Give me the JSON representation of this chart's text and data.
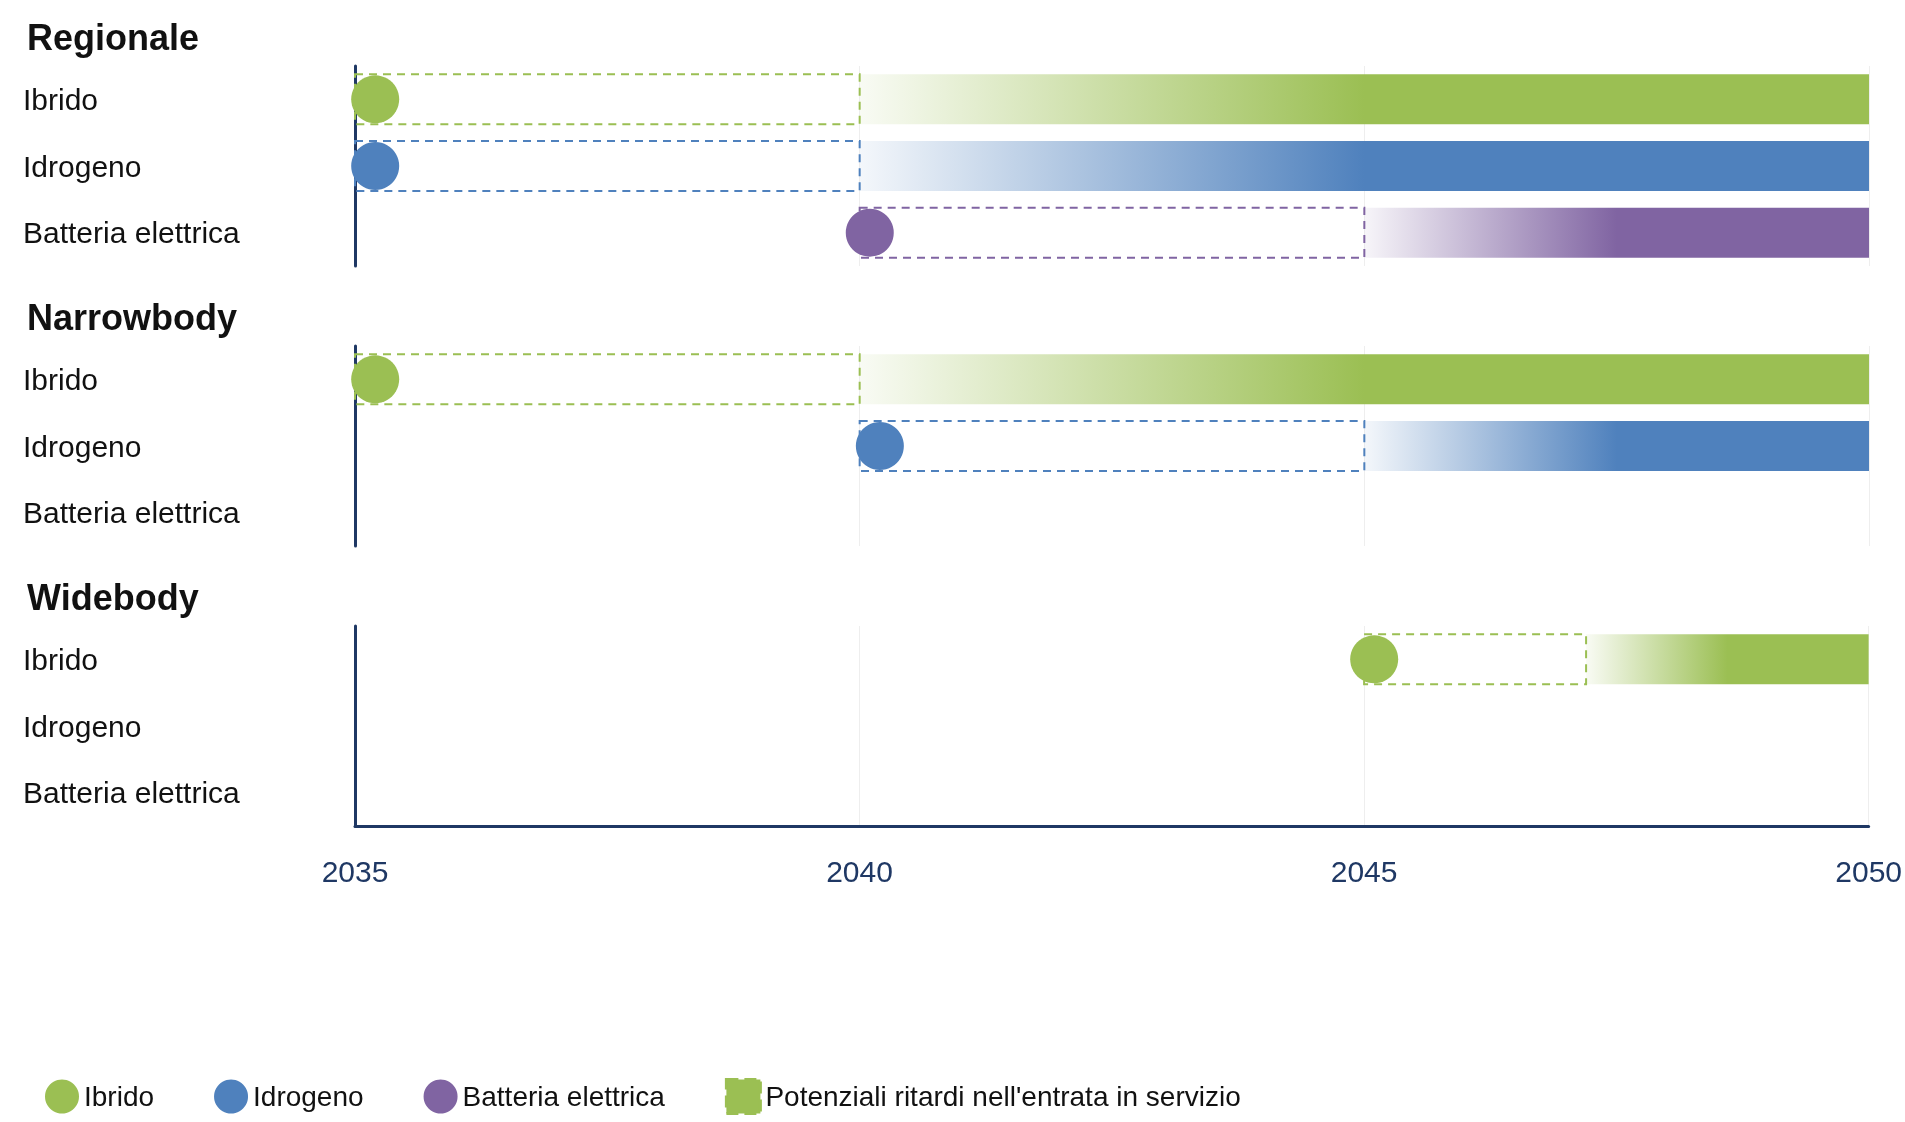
{
  "chart_data": [
    {
      "type": "bar",
      "orientation": "horizontal",
      "title": "Regionale",
      "categories": [
        "Ibrido",
        "Idrogeno",
        "Batteria elettrica"
      ],
      "xlim": [
        2035,
        2050
      ],
      "xticks": [
        2035,
        2040,
        2045,
        2050
      ],
      "grid": "x",
      "tick_labels": "y",
      "legend": false,
      "series": [
        {
          "line_style": "dashed",
          "base": [
            2035,
            2035,
            2040
          ],
          "values": [
            5,
            5,
            5
          ],
          "colors": [
            "#9bbf53",
            "#4f81bd",
            "#8064a2"
          ]
        },
        {
          "base": [
            2040,
            2040,
            2045
          ],
          "values": [
            10,
            10,
            5
          ],
          "colors": [
            "#9bbf53",
            "#4f81bd",
            "#8064a2"
          ]
        },
        {
          "type": "scatter",
          "color": "#9bbf53",
          "values": [
            2035.2,
            null,
            null
          ]
        },
        {
          "type": "scatter",
          "color": "#4f81bd",
          "values": [
            null,
            2035.2,
            null
          ]
        },
        {
          "type": "scatter",
          "color": "#8064a2",
          "values": [
            null,
            null,
            2040.1
          ]
        }
      ]
    },
    {
      "type": "bar",
      "orientation": "horizontal",
      "title": "Narrowbody",
      "categories": [
        "Ibrido",
        "Idrogeno",
        "Batteria elettrica"
      ],
      "xlim": [
        2035,
        2050
      ],
      "xticks": [
        2035,
        2040,
        2045,
        2050
      ],
      "grid": "x",
      "tick_labels": "y",
      "legend": false,
      "series": [
        {
          "line_style": "dashed",
          "base": [
            2035,
            2040,
            null
          ],
          "values": [
            5,
            5,
            null
          ],
          "colors": [
            "#9bbf53",
            "#4f81bd",
            "#8064a2"
          ]
        },
        {
          "base": [
            2040,
            2045,
            null
          ],
          "values": [
            10,
            5,
            null
          ],
          "colors": [
            "#9bbf53",
            "#4f81bd",
            "#8064a2"
          ]
        },
        {
          "type": "scatter",
          "color": "#9bbf53",
          "values": [
            2035.2,
            null,
            null
          ]
        },
        {
          "type": "scatter",
          "color": "#4f81bd",
          "values": [
            null,
            2040.2,
            null
          ]
        }
      ]
    },
    {
      "type": "bar",
      "orientation": "horizontal",
      "title": "Widebody",
      "categories": [
        "Ibrido",
        "Idrogeno",
        "Batteria elettrica"
      ],
      "xlim": [
        2035,
        2050
      ],
      "xticks": [
        2035,
        2040,
        2045,
        2050
      ],
      "grid": "x",
      "legend": "bottom",
      "series": [
        {
          "type": "scatter",
          "name": "Ibrido",
          "color": "#9bbf53",
          "values": [
            2045.1,
            null,
            null
          ]
        },
        {
          "type": "scatter",
          "name": "Idrogeno",
          "color": "#4f81bd",
          "values": [
            null,
            null,
            null
          ]
        },
        {
          "type": "scatter",
          "name": "Batteria elettrica",
          "color": "#8064a2",
          "values": [
            null,
            null,
            null
          ]
        },
        {
          "name": "Potenziali ritardi nell'entrata in servizio",
          "line_style": "dashed",
          "base": [
            2045,
            null,
            null
          ],
          "values": [
            2.2,
            null,
            null
          ],
          "colors": [
            "#9bbf53",
            "#4f81bd",
            "#8064a2"
          ]
        },
        {
          "base": [
            2047.2,
            null,
            null
          ],
          "values": [
            2.8,
            null,
            null
          ],
          "colors": [
            "#9bbf53",
            "#4f81bd",
            "#8064a2"
          ]
        }
      ]
    }
  ]
}
